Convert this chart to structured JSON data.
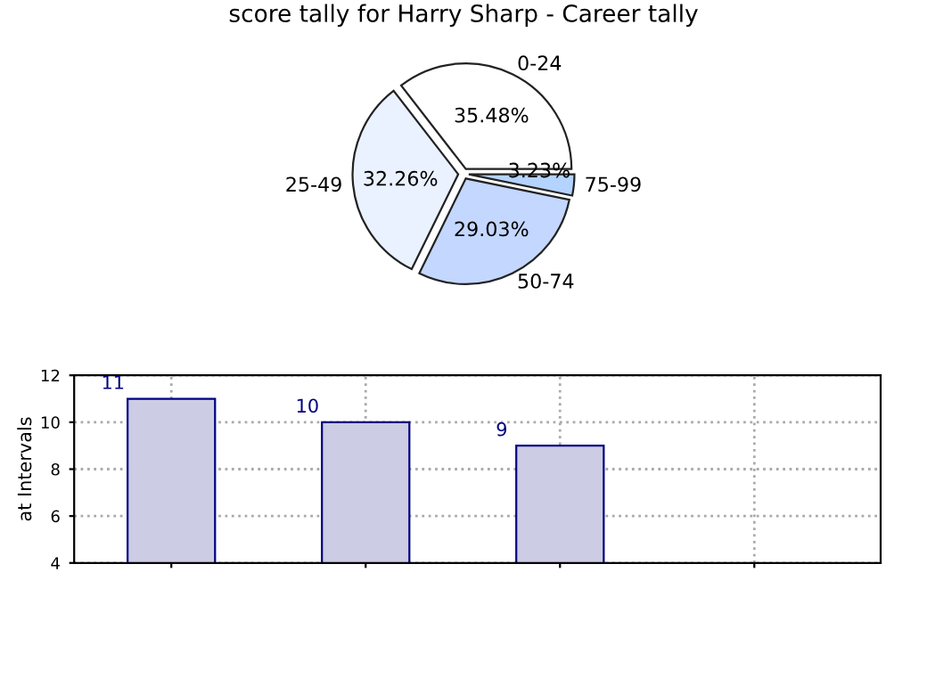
{
  "chart_data": [
    {
      "type": "pie",
      "title": "score tally for Harry Sharp - Career tally",
      "categories": [
        "0-24",
        "25-49",
        "50-74",
        "75-99"
      ],
      "values": [
        35.48,
        32.26,
        29.03,
        3.23
      ],
      "value_labels": [
        "35.48%",
        "32.26%",
        "29.03%",
        "3.23%"
      ],
      "colors": [
        "#ffffff",
        "#eaf1ff",
        "#c3d7ff",
        "#b4d3ff"
      ]
    },
    {
      "type": "bar",
      "ylabel": "at Intervals",
      "categories": [
        null,
        null,
        null,
        null
      ],
      "values": [
        11,
        10,
        9,
        null
      ],
      "value_labels": [
        "11",
        "10",
        "9",
        null
      ],
      "color": "#cccce4",
      "ylim": [
        4,
        12
      ],
      "yticks": [
        4,
        6,
        8,
        10,
        12
      ],
      "grid": true
    }
  ]
}
